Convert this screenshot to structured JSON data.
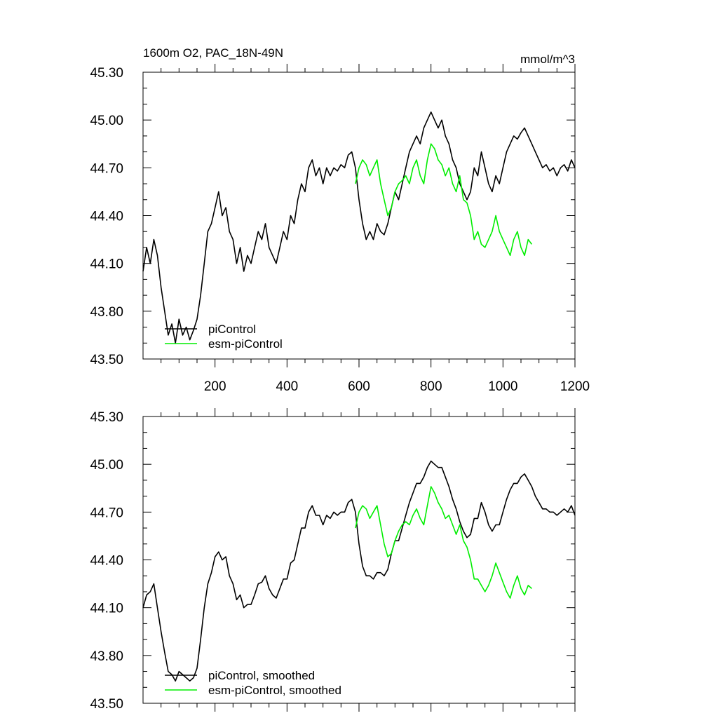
{
  "figure": {
    "title_left": "1600m O2, PAC_18N-49N",
    "title_right": "mmol/m^3",
    "panels": [
      "top",
      "bottom"
    ]
  },
  "colors": {
    "piControl": "#000000",
    "esm_piControl": "#00ee00"
  },
  "chart_data": [
    {
      "type": "line",
      "title": "1600m O2, PAC_18N-49N",
      "units": "mmol/m^3",
      "xlim": [
        0,
        1200
      ],
      "ylim": [
        43.5,
        45.3
      ],
      "x_ticks": [
        200,
        400,
        600,
        800,
        1000,
        1200
      ],
      "x_tick_labels": [
        "200",
        "400",
        "600",
        "800",
        "1000",
        "1200"
      ],
      "y_ticks": [
        43.5,
        43.8,
        44.1,
        44.4,
        44.7,
        45.0,
        45.3
      ],
      "y_tick_labels": [
        "43.50",
        "43.80",
        "44.10",
        "44.40",
        "44.70",
        "45.00",
        "45.30"
      ],
      "legend": [
        "piControl",
        "esm-piControl"
      ],
      "legend_position": "bottom-left",
      "series": [
        {
          "name": "piControl",
          "color": "#000000",
          "x": [
            0,
            10,
            20,
            30,
            40,
            50,
            60,
            70,
            80,
            90,
            100,
            110,
            120,
            130,
            140,
            150,
            160,
            170,
            180,
            190,
            200,
            210,
            220,
            230,
            240,
            250,
            260,
            270,
            280,
            290,
            300,
            310,
            320,
            330,
            340,
            350,
            360,
            370,
            380,
            390,
            400,
            410,
            420,
            430,
            440,
            450,
            460,
            470,
            480,
            490,
            500,
            510,
            520,
            530,
            540,
            550,
            560,
            570,
            580,
            590,
            600,
            610,
            620,
            630,
            640,
            650,
            660,
            670,
            680,
            690,
            700,
            710,
            720,
            730,
            740,
            750,
            760,
            770,
            780,
            790,
            800,
            810,
            820,
            830,
            840,
            850,
            860,
            870,
            880,
            890,
            900,
            910,
            920,
            930,
            940,
            950,
            960,
            970,
            980,
            990,
            1000,
            1010,
            1020,
            1030,
            1040,
            1050,
            1060,
            1070,
            1080,
            1090,
            1100,
            1110,
            1120,
            1130,
            1140,
            1150,
            1160,
            1170,
            1180,
            1190,
            1200
          ],
          "y": [
            44.05,
            44.2,
            44.1,
            44.25,
            44.15,
            43.95,
            43.8,
            43.65,
            43.72,
            43.6,
            43.75,
            43.65,
            43.7,
            43.62,
            43.68,
            43.75,
            43.9,
            44.1,
            44.3,
            44.35,
            44.45,
            44.55,
            44.4,
            44.45,
            44.3,
            44.25,
            44.1,
            44.2,
            44.05,
            44.15,
            44.1,
            44.2,
            44.3,
            44.25,
            44.35,
            44.2,
            44.15,
            44.1,
            44.2,
            44.3,
            44.25,
            44.4,
            44.35,
            44.5,
            44.6,
            44.55,
            44.7,
            44.75,
            44.65,
            44.7,
            44.6,
            44.7,
            44.65,
            44.7,
            44.68,
            44.72,
            44.7,
            44.78,
            44.8,
            44.7,
            44.5,
            44.35,
            44.25,
            44.3,
            44.25,
            44.35,
            44.3,
            44.28,
            44.35,
            44.45,
            44.55,
            44.5,
            44.6,
            44.7,
            44.8,
            44.85,
            44.9,
            44.85,
            44.95,
            45.0,
            45.05,
            45.0,
            44.95,
            45.0,
            44.9,
            44.85,
            44.75,
            44.7,
            44.6,
            44.55,
            44.5,
            44.55,
            44.7,
            44.65,
            44.8,
            44.7,
            44.6,
            44.55,
            44.65,
            44.6,
            44.7,
            44.8,
            44.85,
            44.9,
            44.88,
            44.92,
            44.95,
            44.9,
            44.85,
            44.8,
            44.75,
            44.7,
            44.72,
            44.68,
            44.7,
            44.65,
            44.7,
            44.72,
            44.68,
            44.75,
            44.7
          ]
        },
        {
          "name": "esm-piControl",
          "color": "#00ee00",
          "x": [
            590,
            600,
            610,
            620,
            630,
            640,
            650,
            660,
            670,
            680,
            690,
            700,
            710,
            720,
            730,
            740,
            750,
            760,
            770,
            780,
            790,
            800,
            810,
            820,
            830,
            840,
            850,
            860,
            870,
            880,
            890,
            900,
            910,
            920,
            930,
            940,
            950,
            960,
            970,
            980,
            990,
            1000,
            1010,
            1020,
            1030,
            1040,
            1050,
            1060,
            1070,
            1080
          ],
          "y": [
            44.6,
            44.7,
            44.75,
            44.72,
            44.65,
            44.7,
            44.75,
            44.6,
            44.5,
            44.4,
            44.45,
            44.55,
            44.6,
            44.62,
            44.65,
            44.6,
            44.7,
            44.75,
            44.65,
            44.6,
            44.75,
            44.85,
            44.82,
            44.75,
            44.72,
            44.65,
            44.7,
            44.6,
            44.55,
            44.65,
            44.5,
            44.48,
            44.4,
            44.25,
            44.3,
            44.22,
            44.2,
            44.25,
            44.3,
            44.4,
            44.3,
            44.25,
            44.2,
            44.15,
            44.25,
            44.3,
            44.2,
            44.15,
            44.25,
            44.22
          ]
        }
      ]
    },
    {
      "type": "line",
      "xlim": [
        0,
        1200
      ],
      "ylim": [
        43.5,
        45.3
      ],
      "x_ticks": [
        200,
        400,
        600,
        800,
        1000,
        1200
      ],
      "y_ticks": [
        43.5,
        43.8,
        44.1,
        44.4,
        44.7,
        45.0,
        45.3
      ],
      "y_tick_labels": [
        "43.50",
        "43.80",
        "44.10",
        "44.40",
        "44.70",
        "45.00",
        "45.30"
      ],
      "legend": [
        "piControl, smoothed",
        "esm-piControl, smoothed"
      ],
      "legend_position": "bottom-left",
      "series": [
        {
          "name": "piControl, smoothed",
          "color": "#000000",
          "x": [
            0,
            10,
            20,
            30,
            40,
            50,
            60,
            70,
            80,
            90,
            100,
            110,
            120,
            130,
            140,
            150,
            160,
            170,
            180,
            190,
            200,
            210,
            220,
            230,
            240,
            250,
            260,
            270,
            280,
            290,
            300,
            310,
            320,
            330,
            340,
            350,
            360,
            370,
            380,
            390,
            400,
            410,
            420,
            430,
            440,
            450,
            460,
            470,
            480,
            490,
            500,
            510,
            520,
            530,
            540,
            550,
            560,
            570,
            580,
            590,
            600,
            610,
            620,
            630,
            640,
            650,
            660,
            670,
            680,
            690,
            700,
            710,
            720,
            730,
            740,
            750,
            760,
            770,
            780,
            790,
            800,
            810,
            820,
            830,
            840,
            850,
            860,
            870,
            880,
            890,
            900,
            910,
            920,
            930,
            940,
            950,
            960,
            970,
            980,
            990,
            1000,
            1010,
            1020,
            1030,
            1040,
            1050,
            1060,
            1070,
            1080,
            1090,
            1100,
            1110,
            1120,
            1130,
            1140,
            1150,
            1160,
            1170,
            1180,
            1190,
            1200
          ],
          "y": [
            44.1,
            44.18,
            44.2,
            44.25,
            44.1,
            43.95,
            43.82,
            43.7,
            43.68,
            43.64,
            43.7,
            43.68,
            43.66,
            43.64,
            43.66,
            43.72,
            43.9,
            44.1,
            44.25,
            44.32,
            44.42,
            44.45,
            44.4,
            44.42,
            44.3,
            44.25,
            44.15,
            44.18,
            44.1,
            44.12,
            44.12,
            44.18,
            44.25,
            44.26,
            44.3,
            44.22,
            44.18,
            44.16,
            44.22,
            44.28,
            44.28,
            44.38,
            44.4,
            44.5,
            44.6,
            44.6,
            44.7,
            44.74,
            44.68,
            44.68,
            44.62,
            44.68,
            44.66,
            44.7,
            44.68,
            44.7,
            44.7,
            44.76,
            44.78,
            44.7,
            44.5,
            44.36,
            44.3,
            44.3,
            44.28,
            44.32,
            44.32,
            44.3,
            44.34,
            44.44,
            44.52,
            44.52,
            44.6,
            44.68,
            44.76,
            44.82,
            44.88,
            44.88,
            44.92,
            44.98,
            45.02,
            45.0,
            44.98,
            44.98,
            44.92,
            44.86,
            44.78,
            44.72,
            44.64,
            44.58,
            44.54,
            44.56,
            44.66,
            44.66,
            44.76,
            44.7,
            44.62,
            44.58,
            44.62,
            44.62,
            44.7,
            44.78,
            44.84,
            44.88,
            44.88,
            44.92,
            44.94,
            44.9,
            44.86,
            44.8,
            44.76,
            44.72,
            44.72,
            44.7,
            44.7,
            44.68,
            44.7,
            44.72,
            44.7,
            44.74,
            44.68
          ]
        },
        {
          "name": "esm-piControl, smoothed",
          "color": "#00ee00",
          "x": [
            590,
            600,
            610,
            620,
            630,
            640,
            650,
            660,
            670,
            680,
            690,
            700,
            710,
            720,
            730,
            740,
            750,
            760,
            770,
            780,
            790,
            800,
            810,
            820,
            830,
            840,
            850,
            860,
            870,
            880,
            890,
            900,
            910,
            920,
            930,
            940,
            950,
            960,
            970,
            980,
            990,
            1000,
            1010,
            1020,
            1030,
            1040,
            1050,
            1060,
            1070,
            1080
          ],
          "y": [
            44.6,
            44.7,
            44.74,
            44.72,
            44.66,
            44.7,
            44.74,
            44.62,
            44.5,
            44.42,
            44.44,
            44.52,
            44.58,
            44.62,
            44.64,
            44.62,
            44.68,
            44.72,
            44.66,
            44.62,
            44.74,
            44.86,
            44.82,
            44.76,
            44.72,
            44.66,
            44.68,
            44.62,
            44.56,
            44.62,
            44.52,
            44.48,
            44.4,
            44.28,
            44.28,
            44.24,
            44.2,
            44.24,
            44.3,
            44.38,
            44.32,
            44.26,
            44.2,
            44.16,
            44.24,
            44.3,
            44.22,
            44.18,
            44.24,
            44.22
          ]
        }
      ]
    }
  ]
}
